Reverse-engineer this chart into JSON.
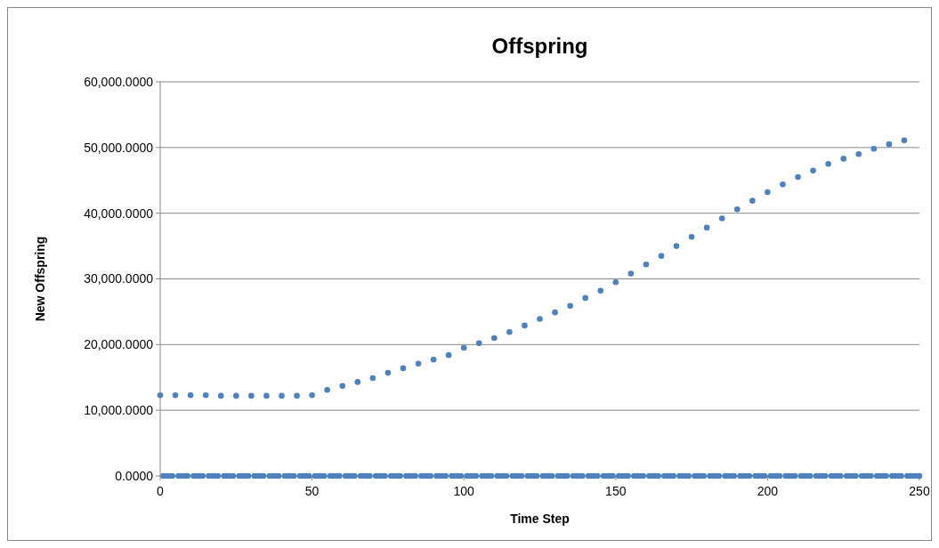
{
  "chart_data": {
    "type": "scatter",
    "title": "Offspring",
    "xlabel": "Time Step",
    "ylabel": "New Offspring",
    "xlim": [
      0,
      250
    ],
    "xticks": [
      0,
      50,
      100,
      150,
      200,
      250
    ],
    "ylim": [
      0,
      60000
    ],
    "yticks": [
      {
        "value": 0,
        "label": "0.0000"
      },
      {
        "value": 10000,
        "label": "10,000.0000"
      },
      {
        "value": 20000,
        "label": "20,000.0000"
      },
      {
        "value": 30000,
        "label": "30,000.0000"
      },
      {
        "value": 40000,
        "label": "40,000.0000"
      },
      {
        "value": 50000,
        "label": "50,000.0000"
      },
      {
        "value": 60000,
        "label": "60,000.0000"
      }
    ],
    "grid": "y",
    "marker": "circle",
    "series": [
      {
        "color": "#4f81bd",
        "x": [
          0,
          5,
          10,
          15,
          20,
          25,
          30,
          35,
          40,
          45,
          50,
          55,
          60,
          65,
          70,
          75,
          80,
          85,
          90,
          95,
          100,
          105,
          110,
          115,
          120,
          125,
          130,
          135,
          140,
          145,
          150,
          155,
          160,
          165,
          170,
          175,
          180,
          185,
          190,
          195,
          200,
          205,
          210,
          215,
          220,
          225,
          230,
          235,
          240,
          245
        ],
        "values": [
          12300,
          12300,
          12300,
          12300,
          12200,
          12200,
          12200,
          12200,
          12200,
          12200,
          12300,
          13100,
          13700,
          14300,
          14900,
          15700,
          16400,
          17100,
          17700,
          18400,
          19500,
          20200,
          21000,
          21900,
          22900,
          23900,
          24900,
          25900,
          27100,
          28200,
          29500,
          30800,
          32200,
          33500,
          35000,
          36400,
          37800,
          39200,
          40600,
          41900,
          43200,
          44400,
          45500,
          46500,
          47500,
          48300,
          49000,
          49800,
          50500,
          51100
        ]
      },
      {
        "color": "#4f81bd",
        "x": [
          1,
          2,
          3,
          4,
          6,
          7,
          8,
          9,
          11,
          12,
          13,
          14,
          16,
          17,
          18,
          19,
          21,
          22,
          23,
          24,
          26,
          27,
          28,
          29,
          31,
          32,
          33,
          34,
          36,
          37,
          38,
          39,
          41,
          42,
          43,
          44,
          46,
          47,
          48,
          49,
          51,
          52,
          53,
          54,
          56,
          57,
          58,
          59,
          61,
          62,
          63,
          64,
          66,
          67,
          68,
          69,
          71,
          72,
          73,
          74,
          76,
          77,
          78,
          79,
          81,
          82,
          83,
          84,
          86,
          87,
          88,
          89,
          91,
          92,
          93,
          94,
          96,
          97,
          98,
          99,
          101,
          102,
          103,
          104,
          106,
          107,
          108,
          109,
          111,
          112,
          113,
          114,
          116,
          117,
          118,
          119,
          121,
          122,
          123,
          124,
          126,
          127,
          128,
          129,
          131,
          132,
          133,
          134,
          136,
          137,
          138,
          139,
          141,
          142,
          143,
          144,
          146,
          147,
          148,
          149,
          151,
          152,
          153,
          154,
          156,
          157,
          158,
          159,
          161,
          162,
          163,
          164,
          166,
          167,
          168,
          169,
          171,
          172,
          173,
          174,
          176,
          177,
          178,
          179,
          181,
          182,
          183,
          184,
          186,
          187,
          188,
          189,
          191,
          192,
          193,
          194,
          196,
          197,
          198,
          199,
          201,
          202,
          203,
          204,
          206,
          207,
          208,
          209,
          211,
          212,
          213,
          214,
          216,
          217,
          218,
          219,
          221,
          222,
          223,
          224,
          226,
          227,
          228,
          229,
          231,
          232,
          233,
          234,
          236,
          237,
          238,
          239,
          241,
          242,
          243,
          244,
          246,
          247,
          248,
          249,
          250
        ],
        "values": [
          0,
          0,
          0,
          0,
          0,
          0,
          0,
          0,
          0,
          0,
          0,
          0,
          0,
          0,
          0,
          0,
          0,
          0,
          0,
          0,
          0,
          0,
          0,
          0,
          0,
          0,
          0,
          0,
          0,
          0,
          0,
          0,
          0,
          0,
          0,
          0,
          0,
          0,
          0,
          0,
          0,
          0,
          0,
          0,
          0,
          0,
          0,
          0,
          0,
          0,
          0,
          0,
          0,
          0,
          0,
          0,
          0,
          0,
          0,
          0,
          0,
          0,
          0,
          0,
          0,
          0,
          0,
          0,
          0,
          0,
          0,
          0,
          0,
          0,
          0,
          0,
          0,
          0,
          0,
          0,
          0,
          0,
          0,
          0,
          0,
          0,
          0,
          0,
          0,
          0,
          0,
          0,
          0,
          0,
          0,
          0,
          0,
          0,
          0,
          0,
          0,
          0,
          0,
          0,
          0,
          0,
          0,
          0,
          0,
          0,
          0,
          0,
          0,
          0,
          0,
          0,
          0,
          0,
          0,
          0,
          0,
          0,
          0,
          0,
          0,
          0,
          0,
          0,
          0,
          0,
          0,
          0,
          0,
          0,
          0,
          0,
          0,
          0,
          0,
          0,
          0,
          0,
          0,
          0,
          0,
          0,
          0,
          0,
          0,
          0,
          0,
          0,
          0,
          0,
          0,
          0,
          0,
          0,
          0,
          0,
          0,
          0,
          0,
          0,
          0,
          0,
          0,
          0,
          0,
          0,
          0,
          0,
          0,
          0,
          0,
          0,
          0,
          0,
          0,
          0,
          0,
          0,
          0,
          0,
          0,
          0,
          0,
          0,
          0,
          0,
          0,
          0,
          0,
          0,
          0,
          0,
          0,
          0,
          0,
          0,
          0
        ]
      }
    ]
  }
}
